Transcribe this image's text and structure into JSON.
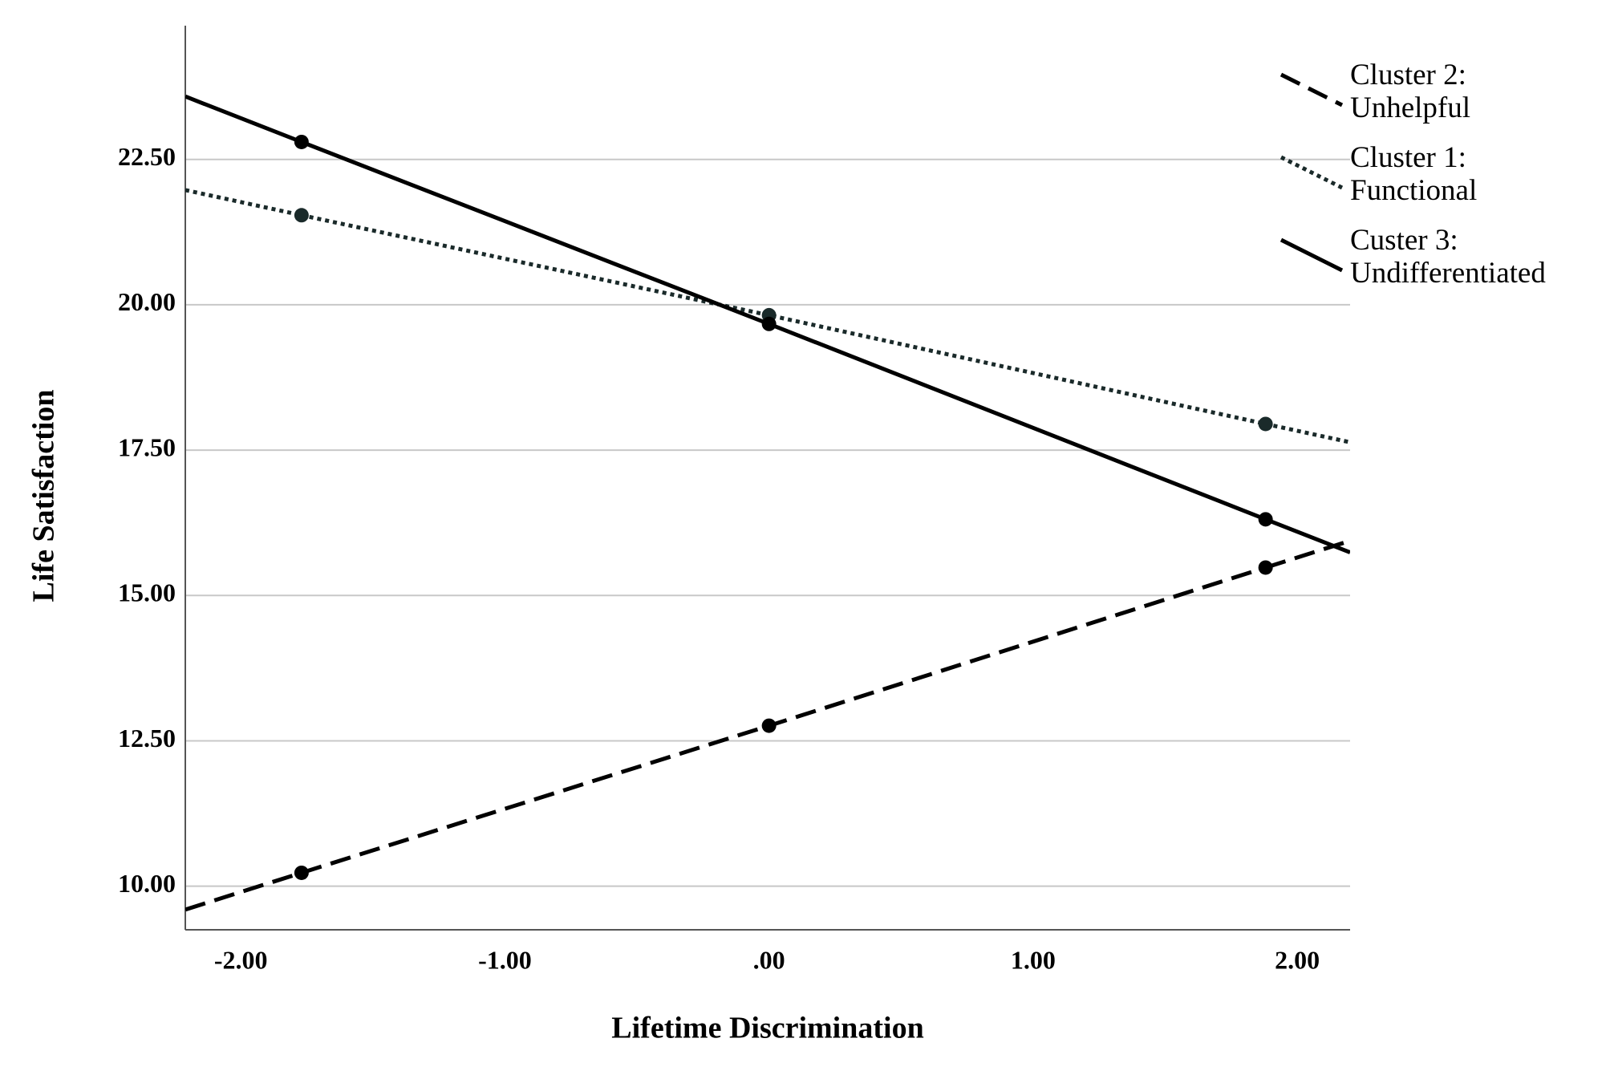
{
  "chart_data": {
    "type": "line",
    "x_label": "Lifetime Discrimination",
    "y_label": "Life Satisfaction",
    "x": [
      -1.77,
      0,
      1.88
    ],
    "series": [
      {
        "name": "Cluster 2: Unhelpful",
        "color": "#000000",
        "dash": "dashed",
        "values": [
          10.23,
          12.76,
          15.48
        ]
      },
      {
        "name": "Cluster 1: Functional",
        "color": "#1a2a2a",
        "dash": "dotted",
        "values": [
          21.54,
          19.82,
          17.95
        ]
      },
      {
        "name": "Custer 3: Undifferentiated",
        "color": "#000000",
        "dash": "solid",
        "values": [
          22.8,
          19.67,
          16.31
        ]
      }
    ],
    "xlim": [
      -2.21,
      2.2
    ],
    "ylim": [
      9.25,
      24.8
    ],
    "xticks": [
      {
        "value": -2,
        "label": "-2.00"
      },
      {
        "value": -1,
        "label": "-1.00"
      },
      {
        "value": 0,
        "label": ".00"
      },
      {
        "value": 1,
        "label": "1.00"
      },
      {
        "value": 2,
        "label": "2.00"
      }
    ],
    "yticks": [
      {
        "value": 10,
        "label": "10.00"
      },
      {
        "value": 12.5,
        "label": "12.50"
      },
      {
        "value": 15,
        "label": "15.00"
      },
      {
        "value": 17.5,
        "label": "17.50"
      },
      {
        "value": 20,
        "label": "20.00"
      },
      {
        "value": 22.5,
        "label": "22.50"
      }
    ],
    "grid": true
  }
}
